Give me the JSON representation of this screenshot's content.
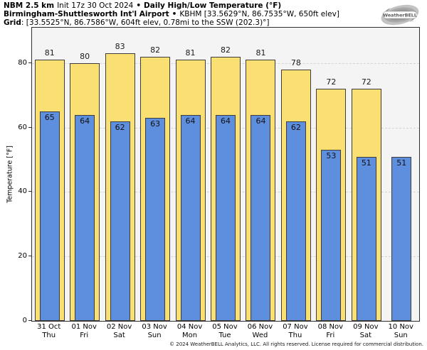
{
  "header": {
    "model": "NBM 2.5 km",
    "init": "Init 17z 30 Oct 2024",
    "bullet": "•",
    "title": "Daily High/Low Temperature (°F)",
    "station": "Birmingham-Shuttlesworth Int'l Airport",
    "station_detail": "KBHM [33.5629°N, 86.7535°W, 650ft elev]",
    "grid_label": "Grid",
    "grid_detail": ": [33.5525°N, 86.7586°W, 604ft elev, 0.78mi to the SSW (202.3)°]"
  },
  "logo": {
    "brand": "WeatherBELL",
    "sub": "Analytics LLC"
  },
  "footer": {
    "copyright": "© 2024 WeatherBELL Analytics, LLC. All rights reserved. License required for commercial distribution."
  },
  "colors": {
    "high": "#FADF73",
    "low": "#5E8EDE",
    "bar_border": "#3D3D3D",
    "plot_bg": "#F4F4F4",
    "grid_line": "#D4D4D4",
    "frame": "#2E2E2E"
  },
  "chart_data": {
    "type": "bar",
    "title": "NBM 2.5 km Init 17z 30 Oct 2024 • Daily High/Low Temperature (°F) • Birmingham-Shuttlesworth Int'l Airport (KBHM)",
    "xlabel": "",
    "ylabel": "Temperature [°F]",
    "ylim": [
      0,
      91
    ],
    "yticks": [
      0,
      20,
      40,
      60,
      80
    ],
    "grid": "horizontal dashed at yticks",
    "legend_position": "none",
    "categories": [
      "31 Oct",
      "01 Nov",
      "02 Nov",
      "03 Nov",
      "04 Nov",
      "05 Nov",
      "06 Nov",
      "07 Nov",
      "08 Nov",
      "09 Nov",
      "10 Nov"
    ],
    "weekdays": [
      "Thu",
      "Fri",
      "Sat",
      "Sun",
      "Mon",
      "Tue",
      "Wed",
      "Thu",
      "Fri",
      "Sat",
      "Sun"
    ],
    "series": [
      {
        "name": "High",
        "color": "#FADF73",
        "values": [
          81,
          80,
          83,
          82,
          81,
          82,
          81,
          78,
          72,
          72,
          null
        ]
      },
      {
        "name": "Low",
        "color": "#5E8EDE",
        "values": [
          65,
          64,
          62,
          63,
          64,
          64,
          64,
          62,
          53,
          51,
          51
        ]
      }
    ]
  }
}
